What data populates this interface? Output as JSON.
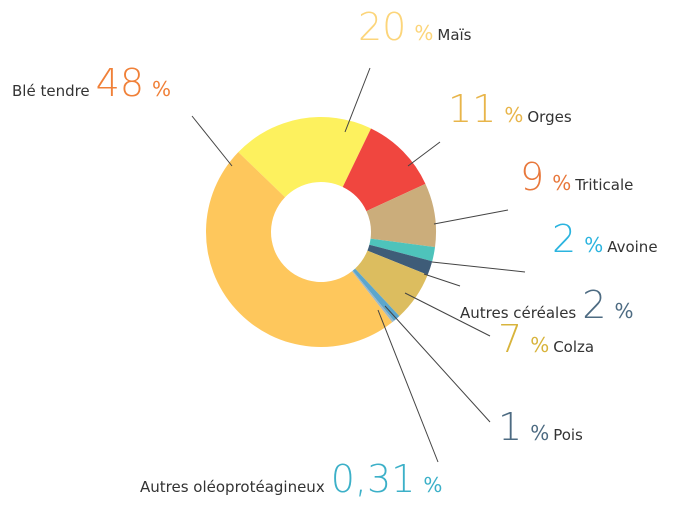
{
  "chart_data": {
    "type": "donut",
    "categories": [
      "Maïs",
      "Orges",
      "Triticale",
      "Avoine",
      "Autres céréales",
      "Colza",
      "Pois",
      "Autres oléoprotéagineux",
      "Blé tendre"
    ],
    "values": [
      20,
      11,
      9,
      2,
      2,
      7,
      1,
      0.31,
      48
    ],
    "value_labels": [
      "20",
      "11",
      "9",
      "2",
      "2",
      "7",
      "1",
      "0,31",
      "48"
    ],
    "unit": "%",
    "colors": [
      "#fdf15e",
      "#f0463f",
      "#cbad7b",
      "#4ec3bb",
      "#3e5c78",
      "#dcbd5f",
      "#5ba6cc",
      "#9db7c8",
      "#fec75c"
    ],
    "label_colors": [
      "#fcd57a",
      "#e8b54a",
      "#e8783c",
      "#2bb4df",
      "#4d6b82",
      "#d8b43c",
      "#4d6b82",
      "#3cb0c8",
      "#f08038"
    ]
  }
}
